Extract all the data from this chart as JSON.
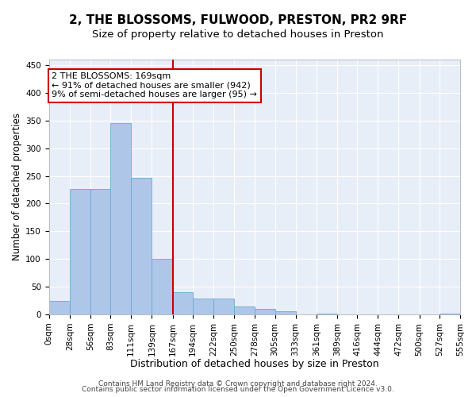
{
  "title": "2, THE BLOSSOMS, FULWOOD, PRESTON, PR2 9RF",
  "subtitle": "Size of property relative to detached houses in Preston",
  "xlabel": "Distribution of detached houses by size in Preston",
  "ylabel": "Number of detached properties",
  "footnote1": "Contains HM Land Registry data © Crown copyright and database right 2024.",
  "footnote2": "Contains public sector information licensed under the Open Government Licence v3.0.",
  "bar_color": "#aec6e8",
  "bar_edge_color": "#6aaad4",
  "bg_color": "#e8eef8",
  "grid_color": "#ffffff",
  "vline_color": "#cc0000",
  "annotation_text": "2 THE BLOSSOMS: 169sqm\n← 91% of detached houses are smaller (942)\n9% of semi-detached houses are larger (95) →",
  "annotation_box_color": "#ffffff",
  "annotation_box_edge": "#cc0000",
  "property_size_bin": 6,
  "bin_edges": [
    0,
    28,
    56,
    83,
    111,
    139,
    167,
    194,
    222,
    250,
    278,
    305,
    333,
    361,
    389,
    416,
    444,
    472,
    500,
    527,
    555
  ],
  "bar_heights": [
    25,
    226,
    226,
    345,
    247,
    101,
    40,
    29,
    29,
    15,
    10,
    5,
    0,
    2,
    0,
    0,
    0,
    0,
    0,
    2
  ],
  "vline_x": 167,
  "ylim": [
    0,
    460
  ],
  "yticks": [
    0,
    50,
    100,
    150,
    200,
    250,
    300,
    350,
    400,
    450
  ],
  "title_fontsize": 11,
  "subtitle_fontsize": 9.5,
  "xlabel_fontsize": 9,
  "ylabel_fontsize": 8.5,
  "tick_fontsize": 7.5,
  "annotation_fontsize": 8,
  "footnote_fontsize": 6.5
}
